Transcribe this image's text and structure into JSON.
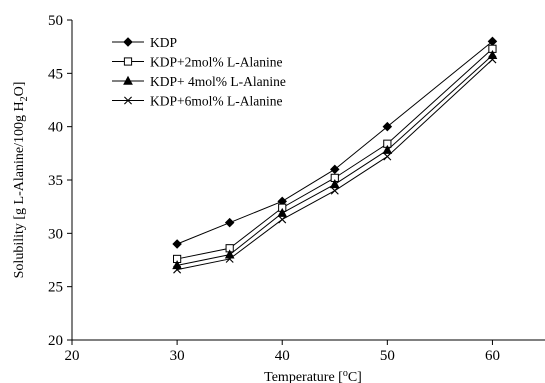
{
  "chart_data": {
    "type": "line",
    "x": [
      30,
      35,
      40,
      45,
      50,
      60
    ],
    "series": [
      {
        "name": "KDP",
        "marker": "diamond",
        "values": [
          29.0,
          31.0,
          33.0,
          36.0,
          40.0,
          48.0
        ]
      },
      {
        "name": "KDP+2mol% L-Alanine",
        "marker": "square",
        "values": [
          27.6,
          28.6,
          32.4,
          35.2,
          38.4,
          47.3
        ]
      },
      {
        "name": "KDP+ 4mol% L-Alanine",
        "marker": "triangle",
        "values": [
          27.0,
          28.0,
          31.9,
          34.6,
          37.8,
          46.7
        ]
      },
      {
        "name": "KDP+6mol% L-Alanine",
        "marker": "x",
        "values": [
          26.6,
          27.6,
          31.3,
          34.0,
          37.2,
          46.3
        ]
      }
    ],
    "xlabel": "Temperature [°C]",
    "xlabel_parts": {
      "prefix": "Temperature [",
      "superscript": "o",
      "suffix": "C]"
    },
    "ylabel": "Solubility [g L-Alanine/100g H2O]",
    "ylabel_parts": {
      "prefix": "Solubility [g L-Alanine/100g H",
      "subscript": "2",
      "suffix": "O]"
    },
    "xlim": [
      20,
      65
    ],
    "ylim": [
      20,
      50
    ],
    "xticks": [
      20,
      30,
      40,
      50,
      60
    ],
    "yticks": [
      20,
      25,
      30,
      35,
      40,
      45,
      50
    ],
    "grid": false,
    "legend_position": "top-left",
    "line_color": "#000000"
  }
}
